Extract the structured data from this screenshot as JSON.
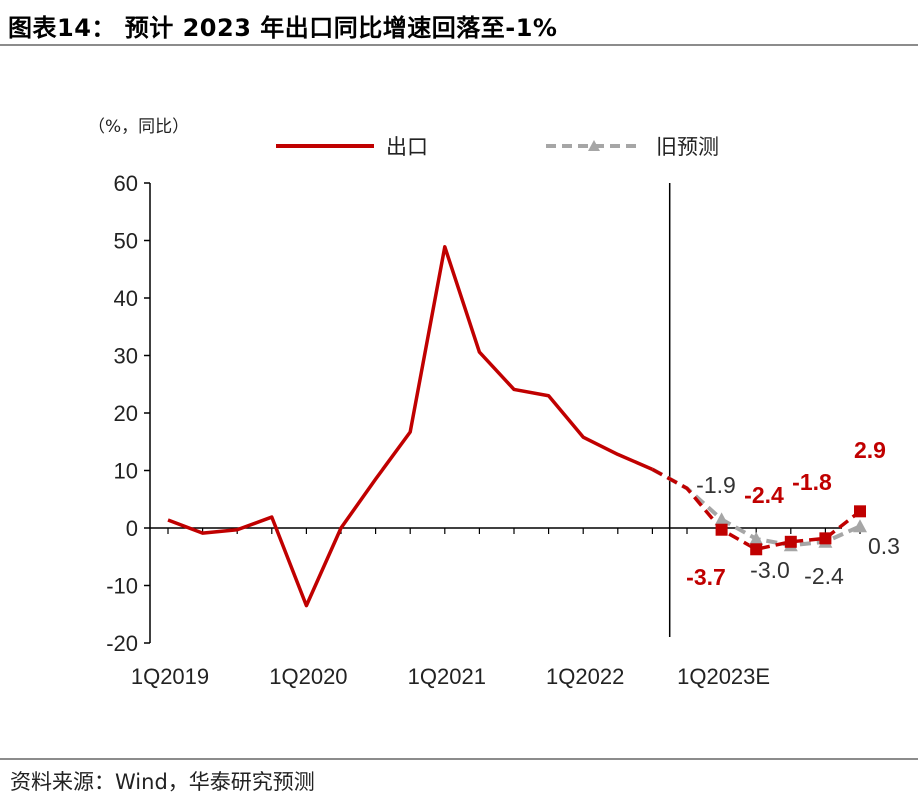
{
  "header": {
    "title": "图表14：  预计 2023 年出口同比增速回落至-1%"
  },
  "source": "资料来源：Wind，华泰研究预测",
  "colors": {
    "actual": "#c00000",
    "old_forecast": "#a6a6a6",
    "axis": "#000000"
  },
  "chart_data": {
    "type": "line",
    "title": "预计 2023 年出口同比增速回落至-1%",
    "unit_label": "（%，同比）",
    "ylim": [
      -20,
      60
    ],
    "yticks": [
      60,
      50,
      40,
      30,
      20,
      10,
      0,
      -10,
      -20
    ],
    "x_tick_labels": [
      "1Q2019",
      "1Q2020",
      "1Q2021",
      "1Q2022",
      "1Q2023E"
    ],
    "legend": {
      "actual": "出口",
      "old_forecast": "旧预测"
    },
    "series": [
      {
        "name": "出口",
        "style": "solid",
        "x": [
          0,
          1,
          2,
          3,
          4,
          5,
          6,
          7,
          8,
          9,
          10,
          11,
          12,
          13,
          14
        ],
        "values": [
          1.4,
          -0.9,
          -0.3,
          1.9,
          -13.5,
          0.0,
          8.5,
          16.7,
          48.9,
          30.6,
          24.1,
          23.0,
          15.8,
          12.8,
          10.2
        ]
      },
      {
        "name": "出口（预测）",
        "style": "dashed",
        "x": [
          14,
          15,
          16,
          17,
          18,
          19,
          20
        ],
        "values": [
          10.2,
          6.9,
          -0.3,
          -3.7,
          -2.4,
          -1.8,
          2.9
        ]
      },
      {
        "name": "旧预测",
        "style": "dashed",
        "x": [
          14,
          15,
          16,
          17,
          18,
          19,
          20
        ],
        "values": [
          10.2,
          6.9,
          1.5,
          -1.9,
          -3.0,
          -2.4,
          0.3
        ]
      }
    ],
    "forecast_start_x": 15,
    "data_labels": {
      "actual": [
        "-3.7",
        "-2.4",
        "-1.8",
        "2.9"
      ],
      "old_forecast": [
        "-1.9",
        "-3.0",
        "-2.4",
        "0.3"
      ]
    }
  }
}
